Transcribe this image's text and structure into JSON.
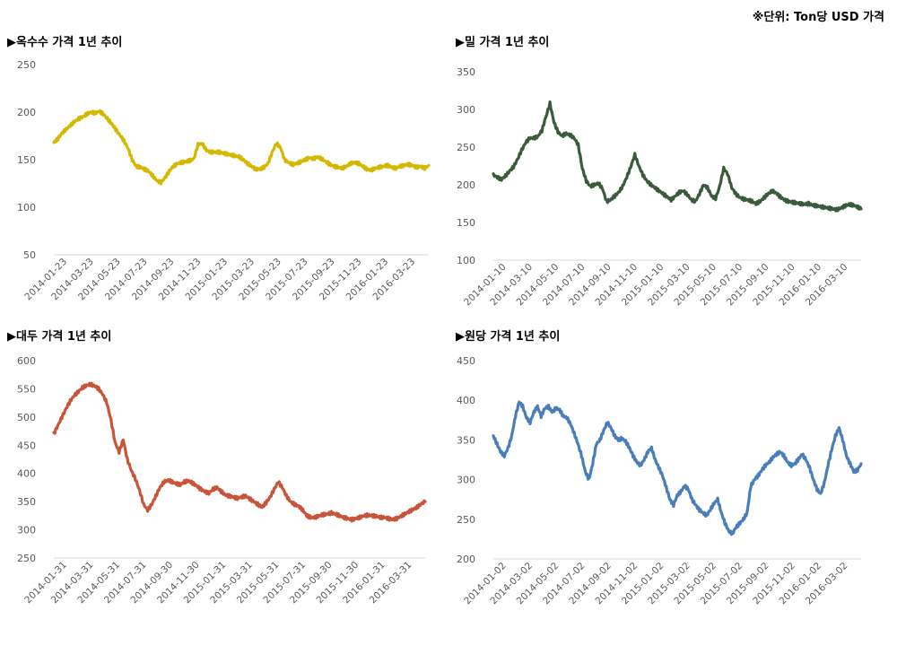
{
  "unit_note": "※단위: Ton당 USD 가격",
  "chart_data": [
    {
      "type": "line",
      "title": "▶옥수수 가격 1년 추이",
      "color": "#d4b800",
      "ylim": [
        50,
        250
      ],
      "yticks": [
        50,
        100,
        150,
        200,
        250
      ],
      "xticks": [
        "2014-01-23",
        "2014-03-23",
        "2014-05-23",
        "2014-07-23",
        "2014-09-23",
        "2014-11-23",
        "2015-01-23",
        "2015-03-23",
        "2015-05-23",
        "2015-07-23",
        "2015-09-23",
        "2015-11-23",
        "2016-01-23",
        "2016-03-23"
      ],
      "series": [
        {
          "values": [
            168,
            172,
            178,
            182,
            186,
            190,
            193,
            195,
            198,
            200,
            199,
            201,
            198,
            193,
            188,
            182,
            176,
            170,
            162,
            150,
            143,
            142,
            140,
            138,
            133,
            128,
            126,
            131,
            138,
            143,
            146,
            147,
            148,
            149,
            151,
            166,
            167,
            160,
            158,
            158,
            158,
            157,
            156,
            155,
            154,
            153,
            150,
            146,
            143,
            140,
            140,
            142,
            146,
            158,
            167,
            163,
            150,
            147,
            145,
            146,
            148,
            150,
            152,
            151,
            153,
            151,
            148,
            145,
            143,
            142,
            141,
            143,
            146,
            147,
            146,
            143,
            140,
            139,
            141,
            142,
            143,
            144,
            142,
            141,
            143,
            144,
            145,
            144,
            142,
            143,
            141,
            144
          ]
        }
      ]
    },
    {
      "type": "line",
      "title": "▶밀 가격 1년 추이",
      "color": "#3b5a3b",
      "ylim": [
        100,
        350
      ],
      "yticks": [
        100,
        150,
        200,
        250,
        300,
        350
      ],
      "xticks": [
        "2014-01-10",
        "2014-03-10",
        "2014-05-10",
        "2014-07-10",
        "2014-09-10",
        "2014-11-10",
        "2015-01-10",
        "2015-03-10",
        "2015-05-10",
        "2015-07-10",
        "2015-09-10",
        "2015-11-10",
        "2016-01-10",
        "2016-03-10"
      ],
      "series": [
        {
          "values": [
            213,
            210,
            207,
            212,
            218,
            224,
            234,
            246,
            256,
            262,
            262,
            264,
            272,
            290,
            308,
            283,
            270,
            265,
            268,
            266,
            262,
            253,
            222,
            205,
            198,
            200,
            202,
            195,
            178,
            180,
            185,
            190,
            198,
            210,
            224,
            240,
            225,
            213,
            205,
            200,
            196,
            192,
            188,
            184,
            180,
            185,
            190,
            192,
            187,
            180,
            178,
            188,
            200,
            196,
            185,
            182,
            198,
            222,
            214,
            196,
            188,
            183,
            181,
            180,
            178,
            175,
            178,
            183,
            188,
            192,
            189,
            184,
            180,
            178,
            177,
            176,
            175,
            174,
            175,
            173,
            172,
            171,
            170,
            169,
            168,
            167,
            169,
            172,
            174,
            173,
            171,
            168
          ]
        }
      ]
    },
    {
      "type": "line",
      "title": "▶대두 가격 1년 추이",
      "color": "#c8553a",
      "ylim": [
        250,
        600
      ],
      "yticks": [
        250,
        300,
        350,
        400,
        450,
        500,
        550,
        600
      ],
      "xticks": [
        "2014-01-31",
        "2014-03-31",
        "2014-05-31",
        "2014-07-31",
        "2014-09-30",
        "2014-11-30",
        "2015-01-31",
        "2015-03-31",
        "2015-05-31",
        "2015-07-31",
        "2015-09-30",
        "2015-11-30",
        "2016-01-31",
        "2016-03-31"
      ],
      "series": [
        {
          "values": [
            470,
            485,
            500,
            515,
            528,
            538,
            545,
            552,
            556,
            558,
            555,
            550,
            540,
            525,
            495,
            455,
            438,
            460,
            425,
            405,
            390,
            370,
            345,
            335,
            345,
            360,
            375,
            385,
            388,
            385,
            382,
            380,
            385,
            387,
            383,
            378,
            372,
            368,
            365,
            372,
            375,
            368,
            362,
            360,
            358,
            356,
            358,
            360,
            355,
            350,
            345,
            340,
            348,
            358,
            372,
            385,
            375,
            360,
            350,
            345,
            342,
            335,
            325,
            322,
            322,
            325,
            327,
            328,
            330,
            328,
            325,
            322,
            320,
            318,
            320,
            322,
            325,
            326,
            325,
            324,
            322,
            322,
            320,
            318,
            320,
            324,
            328,
            332,
            336,
            340,
            346,
            350
          ]
        }
      ]
    },
    {
      "type": "line",
      "title": "▶원당 가격 1년 추이",
      "color": "#4a7ebb",
      "ylim": [
        200,
        450
      ],
      "yticks": [
        200,
        250,
        300,
        350,
        400,
        450
      ],
      "xticks": [
        "2014-01-02",
        "2014-03-02",
        "2014-05-02",
        "2014-07-02",
        "2014-09-02",
        "2014-11-02",
        "2015-01-02",
        "2015-03-02",
        "2015-05-02",
        "2015-07-02",
        "2015-09-02",
        "2015-11-02",
        "2016-01-02",
        "2016-03-02"
      ],
      "series": [
        {
          "values": [
            355,
            345,
            335,
            330,
            340,
            355,
            380,
            398,
            392,
            378,
            372,
            385,
            392,
            380,
            390,
            392,
            385,
            390,
            388,
            380,
            378,
            370,
            358,
            345,
            330,
            310,
            300,
            320,
            345,
            350,
            362,
            372,
            365,
            355,
            350,
            352,
            348,
            340,
            330,
            322,
            318,
            325,
            335,
            340,
            325,
            315,
            305,
            290,
            275,
            268,
            280,
            285,
            292,
            288,
            275,
            268,
            262,
            258,
            255,
            262,
            270,
            275,
            258,
            245,
            235,
            232,
            240,
            245,
            250,
            258,
            292,
            300,
            305,
            312,
            318,
            322,
            328,
            332,
            335,
            330,
            322,
            318,
            320,
            326,
            332,
            325,
            315,
            300,
            288,
            282,
            296,
            318,
            338,
            355,
            365,
            350,
            330,
            320,
            310,
            312,
            320
          ]
        }
      ]
    }
  ]
}
